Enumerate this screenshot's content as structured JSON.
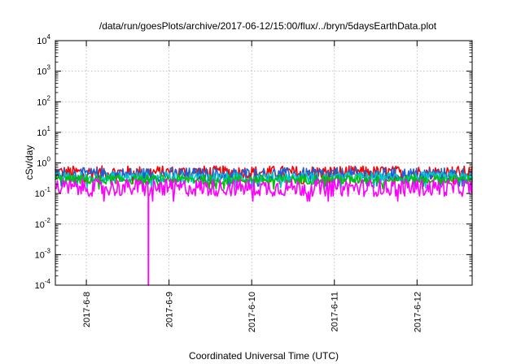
{
  "chart_data": {
    "type": "line",
    "title": "/data/run/goesPlots/archive/2017-06-12/15:00/flux/../bryn/5daysEarthData.plot",
    "xlabel": "Coordinated Universal Time (UTC)",
    "ylabel": "cSv/day",
    "y_scale": "log",
    "ylim": [
      0.0001,
      10000
    ],
    "y_ticks": [
      {
        "base": "10",
        "exp": "-4"
      },
      {
        "base": "10",
        "exp": "-3"
      },
      {
        "base": "10",
        "exp": "-2"
      },
      {
        "base": "10",
        "exp": "-1"
      },
      {
        "base": "10",
        "exp": "0"
      },
      {
        "base": "10",
        "exp": "1"
      },
      {
        "base": "10",
        "exp": "2"
      },
      {
        "base": "10",
        "exp": "3"
      },
      {
        "base": "10",
        "exp": "4"
      }
    ],
    "xlim": [
      "2017-06-07 15:00",
      "2017-06-12 16:00"
    ],
    "x_ticks": [
      "2017-6-8",
      "2017-6-9",
      "2017-6-10",
      "2017-6-11",
      "2017-6-12"
    ],
    "grid": true,
    "series": [
      {
        "color": "#ff0000",
        "typical_min": 0.3,
        "typical_max": 0.8
      },
      {
        "color": "#1f5fd6",
        "typical_min": 0.25,
        "typical_max": 0.7
      },
      {
        "color": "#00c8c8",
        "typical_min": 0.22,
        "typical_max": 0.5
      },
      {
        "color": "#00c000",
        "typical_min": 0.2,
        "typical_max": 0.4
      },
      {
        "color": "#ff00ff",
        "typical_min": 0.08,
        "typical_max": 0.3,
        "drop_at": "2017-06-08 18:00",
        "drop_value": 0.0001
      }
    ]
  }
}
